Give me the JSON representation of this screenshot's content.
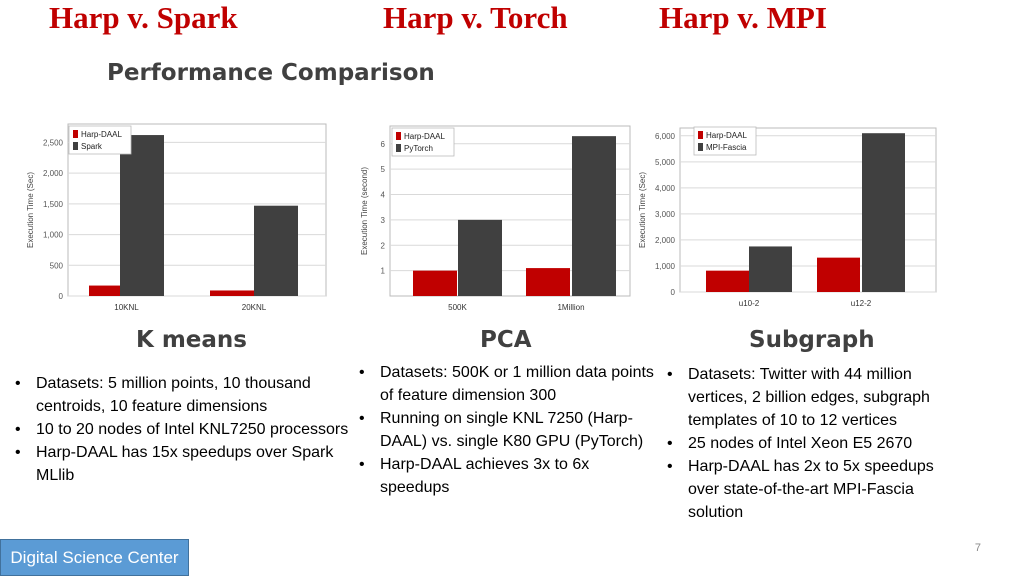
{
  "headers": {
    "spark": "Harp v. Spark",
    "torch": "Harp v. Torch",
    "mpi": "Harp v. MPI"
  },
  "section_title": "Performance Comparison",
  "colors": {
    "harp": "#c00000",
    "other": "#404040",
    "header_red": "#c00000",
    "footer_blue": "#5b9bd5"
  },
  "subtitles": {
    "kmeans": "K means",
    "pca": "PCA",
    "subgraph": "Subgraph"
  },
  "bullets": {
    "kmeans": [
      "Datasets: 5 million points, 10 thousand centroids, 10 feature dimensions",
      "10 to 20 nodes of Intel KNL7250 processors",
      "Harp-DAAL has 15x speedups over Spark MLlib"
    ],
    "pca": [
      "Datasets: 500K or 1 million data points of feature dimension 300",
      "Running on single KNL 7250 (Harp-DAAL) vs. single K80 GPU (PyTorch)",
      "Harp-DAAL achieves 3x to 6x speedups"
    ],
    "subgraph": [
      "Datasets: Twitter with 44 million vertices, 2 billion edges, subgraph templates of 10 to 12 vertices",
      "25 nodes of Intel Xeon E5 2670",
      "Harp-DAAL has 2x to 5x speedups over state-of-the-art MPI-Fascia solution"
    ]
  },
  "footer": {
    "label": "Digital Science Center",
    "page_number": "7"
  },
  "chart_data": [
    {
      "type": "bar",
      "categories": [
        "10KNL",
        "20KNL"
      ],
      "series": [
        {
          "name": "Harp-DAAL",
          "values": [
            170,
            90
          ]
        },
        {
          "name": "Spark",
          "values": [
            2620,
            1470
          ]
        }
      ],
      "xlabel": "",
      "ylabel": "Execution Time (Sec)",
      "ylim": [
        0,
        2800
      ],
      "yticks": [
        0,
        500,
        1000,
        1500,
        2000,
        2500
      ],
      "ytick_labels": [
        "0",
        "500",
        "1,000",
        "1,500",
        "2,000",
        "2,500"
      ],
      "legend": "top-left",
      "grid": true
    },
    {
      "type": "bar",
      "categories": [
        "500K",
        "1Million"
      ],
      "series": [
        {
          "name": "Harp-DAAL",
          "values": [
            1.0,
            1.1
          ]
        },
        {
          "name": "PyTorch",
          "values": [
            3.0,
            6.3
          ]
        }
      ],
      "xlabel": "",
      "ylabel": "Execution Time (second)",
      "ylim": [
        0,
        6.7
      ],
      "yticks": [
        1,
        2,
        3,
        4,
        5,
        6
      ],
      "ytick_labels": [
        "1",
        "2",
        "3",
        "4",
        "5",
        "6"
      ],
      "legend": "top-left",
      "grid": true
    },
    {
      "type": "bar",
      "categories": [
        "u10-2",
        "u12-2"
      ],
      "series": [
        {
          "name": "Harp-DAAL",
          "values": [
            820,
            1320
          ]
        },
        {
          "name": "MPI-Fascia",
          "values": [
            1750,
            6100
          ]
        }
      ],
      "xlabel": "",
      "ylabel": "Execution Time (Sec)",
      "ylim": [
        0,
        6300
      ],
      "yticks": [
        0,
        1000,
        2000,
        3000,
        4000,
        5000,
        6000
      ],
      "ytick_labels": [
        "0",
        "1,000",
        "2,000",
        "3,000",
        "4,000",
        "5,000",
        "6,000"
      ],
      "legend": "top-left",
      "grid": true
    }
  ]
}
